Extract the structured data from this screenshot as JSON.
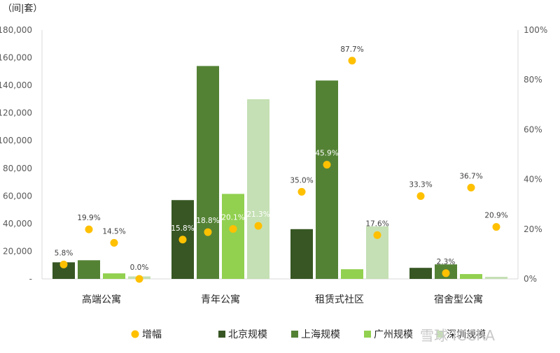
{
  "chart_data": {
    "type": "bar",
    "y_unit_label": "（间|套）",
    "categories": [
      "高端公寓",
      "青年公寓",
      "租赁式社区",
      "宿舍型公寓"
    ],
    "series": [
      {
        "name": "北京规模",
        "values": [
          12000,
          57000,
          36000,
          8000
        ],
        "color": "#375623"
      },
      {
        "name": "上海规模",
        "values": [
          13500,
          154000,
          143500,
          10500
        ],
        "color": "#548235"
      },
      {
        "name": "广州规模",
        "values": [
          4000,
          61500,
          7000,
          3500
        ],
        "color": "#92d050"
      },
      {
        "name": "深圳规模",
        "values": [
          1800,
          130000,
          38000,
          1500
        ],
        "color": "#c5e0b4"
      }
    ],
    "growth": {
      "name": "增幅",
      "color": "#ffc000",
      "values": [
        [
          5.8,
          19.9,
          14.5,
          0.0
        ],
        [
          15.8,
          18.8,
          20.1,
          21.3
        ],
        [
          35.0,
          45.9,
          87.7,
          17.6
        ],
        [
          33.3,
          2.3,
          36.7,
          20.9
        ]
      ],
      "labels": [
        [
          "5.8%",
          "19.9%",
          "14.5%",
          "0.0%"
        ],
        [
          "15.8%",
          "18.8%",
          "20.1%",
          "21.3%"
        ],
        [
          "35.0%",
          "45.9%",
          "87.7%",
          "17.6%"
        ],
        [
          "33.3%",
          "2.3%",
          "36.7%",
          "20.9%"
        ]
      ]
    },
    "ylim": [
      0,
      180000
    ],
    "y2lim": [
      0,
      100
    ],
    "y_ticks": [
      0,
      20000,
      40000,
      60000,
      80000,
      100000,
      120000,
      140000,
      160000,
      180000
    ],
    "y_tick_labels": [
      "-",
      "20,000",
      "40,000",
      "60,000",
      "80,000",
      "100,000",
      "120,000",
      "140,000",
      "160,000",
      "180,000"
    ],
    "y2_ticks": [
      0,
      20,
      40,
      60,
      80,
      100
    ],
    "y2_tick_labels": [
      "0%",
      "20%",
      "40%",
      "60%",
      "80%",
      "100%"
    ],
    "grid": false,
    "legend_position": "bottom",
    "legend_labels": [
      "增幅",
      "北京规模",
      "上海规模",
      "广州规模",
      "深圳规模"
    ]
  },
  "watermark": "雪球 ICCRA"
}
